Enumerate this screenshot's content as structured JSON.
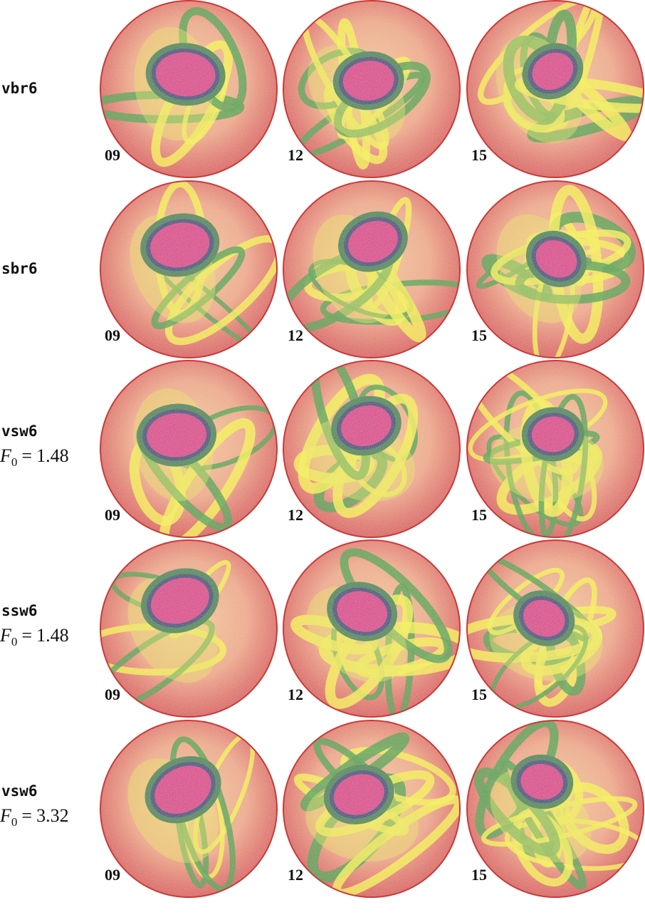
{
  "figure": {
    "rows": [
      {
        "name": "vbr6",
        "panels": [
          {
            "label": "09"
          },
          {
            "label": "12"
          },
          {
            "label": "15"
          }
        ]
      },
      {
        "name": "sbr6",
        "panels": [
          {
            "label": "09"
          },
          {
            "label": "12"
          },
          {
            "label": "15"
          }
        ]
      },
      {
        "name": "vsw6",
        "parameter": {
          "symbol": "F",
          "subscript": "0",
          "relation": "=",
          "value": "1.48"
        },
        "panels": [
          {
            "label": "09"
          },
          {
            "label": "12"
          },
          {
            "label": "15"
          }
        ]
      },
      {
        "name": "ssw6",
        "parameter": {
          "symbol": "F",
          "subscript": "0",
          "relation": "=",
          "value": "1.48"
        },
        "panels": [
          {
            "label": "09"
          },
          {
            "label": "12"
          },
          {
            "label": "15"
          }
        ]
      },
      {
        "name": "vsw6",
        "parameter": {
          "symbol": "F",
          "subscript": "0",
          "relation": "=",
          "value": "3.32"
        },
        "panels": [
          {
            "label": "09"
          },
          {
            "label": "12"
          },
          {
            "label": "15"
          }
        ]
      }
    ]
  }
}
